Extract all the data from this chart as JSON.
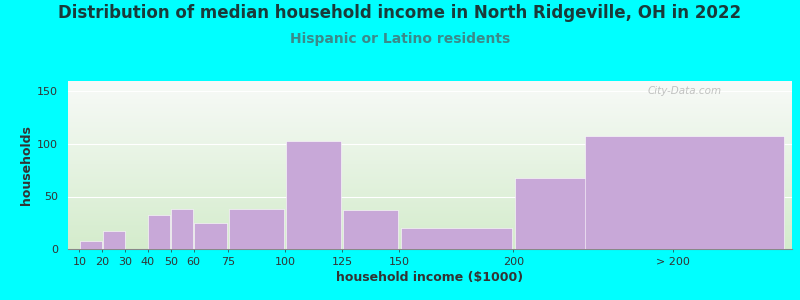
{
  "title": "Distribution of median household income in North Ridgeville, OH in 2022",
  "subtitle": "Hispanic or Latino residents",
  "xlabel": "household income ($1000)",
  "ylabel": "households",
  "bar_color": "#c8a8d8",
  "background_color": "#00ffff",
  "plot_bg_top": "#f8f8f8",
  "plot_bg_bottom": "#d4eccc",
  "watermark": "City-Data.com",
  "title_color": "#1a3a3a",
  "subtitle_color": "#3a8a8a",
  "bar_lefts": [
    10,
    20,
    30,
    40,
    50,
    60,
    75,
    100,
    125,
    150,
    200,
    230
  ],
  "bar_widths": [
    10,
    10,
    10,
    10,
    10,
    15,
    25,
    25,
    25,
    50,
    50,
    90
  ],
  "bar_heights": [
    8,
    17,
    0,
    32,
    38,
    25,
    38,
    103,
    37,
    20,
    68,
    108
  ],
  "xtick_positions": [
    10,
    20,
    30,
    40,
    50,
    60,
    75,
    100,
    125,
    150,
    200,
    270
  ],
  "xtick_labels": [
    "10",
    "20",
    "30",
    "40",
    "50",
    "60",
    "75",
    "100",
    "125",
    "150",
    "200",
    "> 200"
  ],
  "xlim": [
    5,
    322
  ],
  "ylim": [
    0,
    160
  ],
  "yticks": [
    0,
    50,
    100,
    150
  ],
  "title_fontsize": 12,
  "subtitle_fontsize": 10,
  "axis_label_fontsize": 9,
  "tick_fontsize": 8
}
